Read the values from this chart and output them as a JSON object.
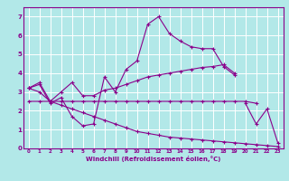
{
  "xlabel": "Windchill (Refroidissement éolien,°C)",
  "bg_color": "#b2e8e8",
  "line_color": "#8b008b",
  "grid_color": "#ffffff",
  "xlim": [
    -0.5,
    23.5
  ],
  "ylim": [
    0,
    7.5
  ],
  "xticks": [
    0,
    1,
    2,
    3,
    4,
    5,
    6,
    7,
    8,
    9,
    10,
    11,
    12,
    13,
    14,
    15,
    16,
    17,
    18,
    19,
    20,
    21,
    22,
    23
  ],
  "yticks": [
    0,
    1,
    2,
    3,
    4,
    5,
    6,
    7
  ],
  "series": [
    {
      "x": [
        0,
        1,
        2,
        3,
        4,
        5,
        6,
        7,
        8,
        9,
        10,
        11,
        12,
        13,
        14,
        15,
        16,
        17,
        18,
        19
      ],
      "y": [
        3.2,
        3.4,
        2.4,
        2.7,
        1.7,
        1.2,
        1.3,
        3.8,
        3.0,
        4.2,
        4.65,
        6.6,
        7.0,
        6.1,
        5.7,
        5.4,
        5.3,
        5.3,
        4.35,
        3.9
      ]
    },
    {
      "x": [
        0,
        1,
        2,
        3,
        4,
        5,
        6,
        7,
        8,
        9,
        10,
        11,
        12,
        13,
        14,
        15,
        16,
        17,
        18,
        19
      ],
      "y": [
        3.2,
        3.5,
        2.5,
        3.0,
        3.5,
        2.8,
        2.8,
        3.1,
        3.2,
        3.4,
        3.6,
        3.8,
        3.9,
        4.0,
        4.1,
        4.2,
        4.3,
        4.35,
        4.45,
        4.0
      ]
    },
    {
      "x": [
        0,
        1,
        2,
        3,
        4,
        5,
        6,
        7,
        8,
        9,
        10,
        11,
        12,
        13,
        14,
        15,
        16,
        17,
        18,
        19,
        20,
        21
      ],
      "y": [
        2.5,
        2.5,
        2.5,
        2.5,
        2.5,
        2.5,
        2.5,
        2.5,
        2.5,
        2.5,
        2.5,
        2.5,
        2.5,
        2.5,
        2.5,
        2.5,
        2.5,
        2.5,
        2.5,
        2.5,
        2.5,
        2.4
      ]
    },
    {
      "x": [
        0,
        1,
        2,
        3,
        4,
        5,
        6,
        7,
        8,
        9,
        10,
        11,
        12,
        13,
        14,
        15,
        16,
        17,
        18,
        19,
        20,
        21,
        22,
        23
      ],
      "y": [
        3.2,
        3.0,
        2.5,
        2.3,
        2.1,
        1.9,
        1.7,
        1.5,
        1.3,
        1.1,
        0.9,
        0.8,
        0.7,
        0.6,
        0.55,
        0.5,
        0.45,
        0.4,
        0.35,
        0.3,
        0.25,
        0.2,
        0.15,
        0.1
      ]
    },
    {
      "x": [
        20,
        21,
        22,
        23
      ],
      "y": [
        2.4,
        1.3,
        2.1,
        0.3
      ]
    }
  ]
}
